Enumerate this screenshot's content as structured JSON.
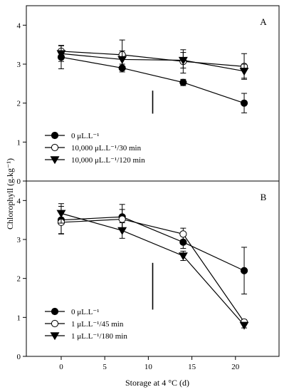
{
  "chart_data": {
    "type": "line",
    "xlabel": "Storage at 4 °C (d)",
    "ylabel": "Chlorophyll (g.kg⁻¹)",
    "x_ticks": [
      0,
      5,
      10,
      15,
      20
    ],
    "xlim": [
      -4,
      25
    ],
    "grid": false,
    "panels": [
      {
        "label": "A",
        "ylim": [
          0,
          4.5
        ],
        "y_ticks": [
          0,
          1,
          2,
          3,
          4
        ],
        "legend_position": "bottom-left",
        "series": [
          {
            "name": "0 μL.L⁻¹",
            "marker": "filled-circle",
            "x": [
              0,
              7,
              14,
              21
            ],
            "y": [
              3.18,
              2.9,
              2.53,
              2.0
            ],
            "err": [
              0.3,
              0.1,
              0.08,
              0.25
            ]
          },
          {
            "name": "10,000 μL.L⁻¹/30 min",
            "marker": "open-circle",
            "x": [
              0,
              7,
              14,
              21
            ],
            "y": [
              3.33,
              3.24,
              3.07,
              2.94
            ],
            "err": [
              0.15,
              0.38,
              0.3,
              0.33
            ]
          },
          {
            "name": "10,000 μL.L⁻¹/120 min",
            "marker": "filled-triangle-down",
            "x": [
              0,
              7,
              14,
              21
            ],
            "y": [
              3.27,
              3.12,
              3.1,
              2.82
            ],
            "err": [
              0.2,
              0.22,
              0.2,
              0.18
            ]
          }
        ],
        "annotation_bar": {
          "x": 10.5,
          "y0": 1.73,
          "y1": 2.32
        }
      },
      {
        "label": "B",
        "ylim": [
          0,
          4.5
        ],
        "y_ticks": [
          0,
          1,
          2,
          3,
          4
        ],
        "legend_position": "bottom-left",
        "series": [
          {
            "name": "0 μL.L⁻¹",
            "marker": "filled-circle",
            "x": [
              0,
              7,
              14,
              21
            ],
            "y": [
              3.5,
              3.58,
              2.93,
              2.2
            ],
            "err": [
              0.35,
              0.32,
              0.16,
              0.6
            ]
          },
          {
            "name": "1 μL.L⁻¹/45 min",
            "marker": "open-circle",
            "x": [
              0,
              7,
              14,
              21
            ],
            "y": [
              3.44,
              3.52,
              3.14,
              0.88
            ],
            "err": [
              0.3,
              0.25,
              0.15,
              0.06
            ]
          },
          {
            "name": "1 μL.L⁻¹/180 min",
            "marker": "filled-triangle-down",
            "x": [
              0,
              7,
              14,
              21
            ],
            "y": [
              3.67,
              3.23,
              2.58,
              0.8
            ],
            "err": [
              0.25,
              0.2,
              0.12,
              0.07
            ]
          }
        ],
        "annotation_bar": {
          "x": 10.5,
          "y0": 1.2,
          "y1": 2.4
        }
      }
    ]
  }
}
